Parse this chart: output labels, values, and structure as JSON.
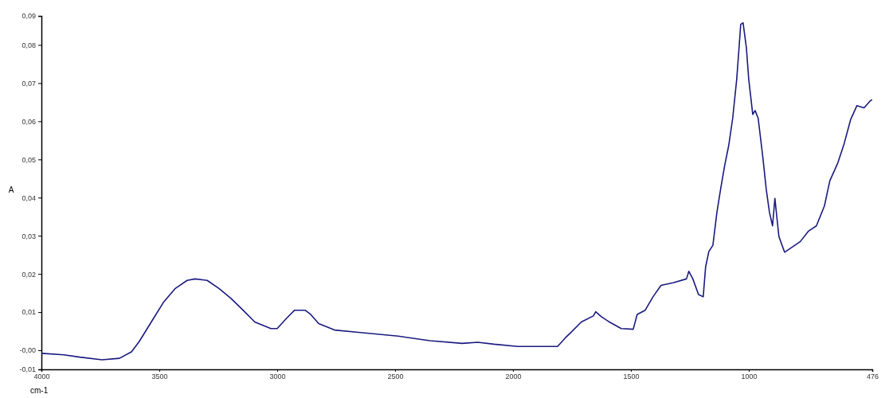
{
  "chart_data": {
    "type": "line",
    "xlabel": "cm-1",
    "ylabel": "A",
    "xlim": [
      4000,
      476
    ],
    "ylim": [
      -0.005,
      0.0876
    ],
    "xticks": [
      {
        "value": 4000,
        "label": "4000"
      },
      {
        "value": 3500,
        "label": "3500"
      },
      {
        "value": 3000,
        "label": "3000"
      },
      {
        "value": 2500,
        "label": "2500"
      },
      {
        "value": 2000,
        "label": "2000"
      },
      {
        "value": 1500,
        "label": "1500"
      },
      {
        "value": 1000,
        "label": "1000"
      },
      {
        "value": 476,
        "label": "476"
      }
    ],
    "yticks": [
      {
        "value": -0.005,
        "label": "-0,01"
      },
      {
        "value": 0,
        "label": "-0,00"
      },
      {
        "value": 0.01,
        "label": "0,01"
      },
      {
        "value": 0.02,
        "label": "0,02"
      },
      {
        "value": 0.03,
        "label": "0,03"
      },
      {
        "value": 0.04,
        "label": "0,04"
      },
      {
        "value": 0.05,
        "label": "0,05"
      },
      {
        "value": 0.06,
        "label": "0,06"
      },
      {
        "value": 0.07,
        "label": "0,07"
      },
      {
        "value": 0.08,
        "label": "0,08"
      },
      {
        "value": 0.0876,
        "label": "0,09"
      }
    ],
    "series": [
      {
        "color": "#1a1a80",
        "x": [
          4000,
          3905,
          3838,
          3743,
          3669,
          3618,
          3585,
          3534,
          3483,
          3432,
          3382,
          3348,
          3297,
          3247,
          3196,
          3145,
          3095,
          3027,
          3000,
          2960,
          2926,
          2882,
          2858,
          2824,
          2757,
          2656,
          2487,
          2352,
          2216,
          2149,
          2081,
          1980,
          1879,
          1811,
          1777,
          1760,
          1710,
          1659,
          1649,
          1625,
          1591,
          1541,
          1490,
          1473,
          1439,
          1406,
          1372,
          1321,
          1264,
          1254,
          1237,
          1213,
          1193,
          1183,
          1169,
          1152,
          1135,
          1119,
          1102,
          1085,
          1068,
          1051,
          1041,
          1034,
          1024,
          1010,
          1000,
          983,
          973,
          960,
          940,
          926,
          912,
          899,
          889,
          879,
          872,
          848,
          814,
          781,
          747,
          713,
          679,
          656,
          622,
          595,
          568,
          541,
          511,
          487,
          477
        ],
        "values": [
          -0.0008,
          -0.0012,
          -0.0018,
          -0.0025,
          -0.0021,
          -0.0004,
          0.0023,
          0.0074,
          0.0125,
          0.0162,
          0.0183,
          0.0187,
          0.0183,
          0.0162,
          0.0136,
          0.0105,
          0.0074,
          0.0057,
          0.0057,
          0.0084,
          0.0105,
          0.0105,
          0.0094,
          0.007,
          0.0053,
          0.0047,
          0.0037,
          0.0025,
          0.0018,
          0.0021,
          0.0016,
          0.001,
          0.001,
          0.001,
          0.0033,
          0.0043,
          0.0074,
          0.009,
          0.0101,
          0.0088,
          0.0074,
          0.0057,
          0.0055,
          0.0094,
          0.0105,
          0.014,
          0.017,
          0.0177,
          0.0187,
          0.0207,
          0.0187,
          0.0146,
          0.014,
          0.0218,
          0.0259,
          0.0275,
          0.0361,
          0.0423,
          0.0484,
          0.0536,
          0.0608,
          0.071,
          0.0793,
          0.0854,
          0.0858,
          0.0793,
          0.071,
          0.0618,
          0.0628,
          0.0608,
          0.0505,
          0.0423,
          0.0361,
          0.0326,
          0.0398,
          0.0339,
          0.0298,
          0.0257,
          0.0271,
          0.0285,
          0.0312,
          0.0326,
          0.0378,
          0.0444,
          0.0491,
          0.0542,
          0.0604,
          0.0641,
          0.0635,
          0.0652,
          0.0657
        ]
      }
    ]
  }
}
